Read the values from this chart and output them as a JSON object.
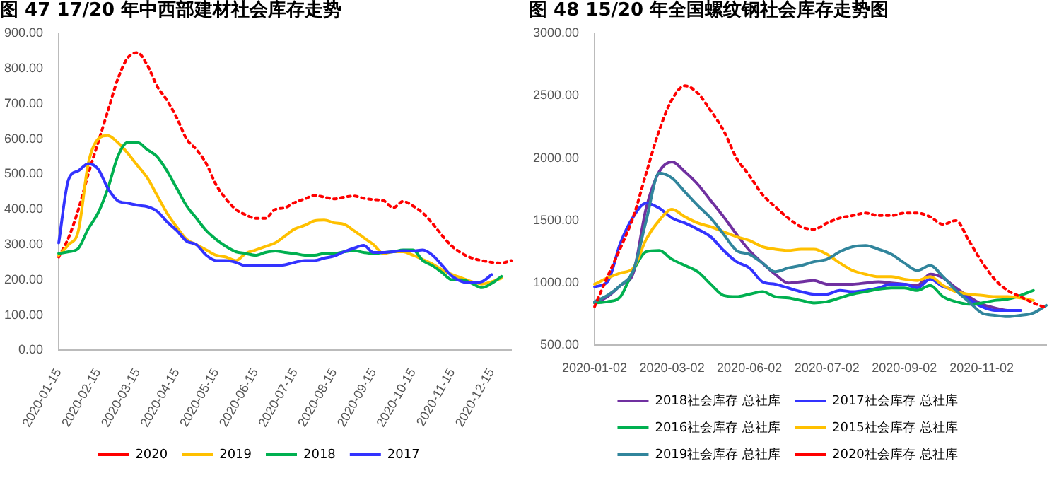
{
  "chart_data": [
    {
      "type": "line",
      "title": "图 47 17/20 年中西部建材社会库存走势",
      "categories": [
        "2020-01-15",
        null,
        null,
        null,
        "2020-02-15",
        null,
        null,
        null,
        "2020-03-15",
        null,
        null,
        null,
        "2020-04-15",
        null,
        null,
        null,
        "2020-05-15",
        null,
        null,
        null,
        "2020-06-15",
        null,
        null,
        null,
        "2020-07-15",
        null,
        null,
        null,
        "2020-08-15",
        null,
        null,
        null,
        "2020-09-15",
        null,
        null,
        null,
        "2020-10-15",
        null,
        null,
        null,
        "2020-11-15",
        null,
        null,
        null,
        "2020-12-15",
        null,
        null
      ],
      "ylim": [
        0,
        900
      ],
      "yticks": [
        {
          "value": 0,
          "label": "0.00"
        },
        {
          "value": 100,
          "label": "100.00"
        },
        {
          "value": 200,
          "label": "200.00"
        },
        {
          "value": 300,
          "label": "300.00"
        },
        {
          "value": 400,
          "label": "400.00"
        },
        {
          "value": 500,
          "label": "500.00"
        },
        {
          "value": 600,
          "label": "600.00"
        },
        {
          "value": 700,
          "label": "700.00"
        },
        {
          "value": 800,
          "label": "800.00"
        },
        {
          "value": 900,
          "label": "900.00"
        }
      ],
      "grid": false,
      "legend": "bottom",
      "marker": "none",
      "series": [
        {
          "name": "2020",
          "color": "#ff0000",
          "line_style": "dotted",
          "values": [
            265,
            320,
            400,
            500,
            590,
            680,
            770,
            830,
            845,
            810,
            750,
            710,
            660,
            600,
            570,
            530,
            470,
            430,
            400,
            385,
            375,
            375,
            400,
            405,
            420,
            430,
            440,
            435,
            430,
            435,
            438,
            432,
            428,
            425,
            405,
            423,
            410,
            390,
            360,
            325,
            295,
            275,
            262,
            255,
            250,
            248,
            255
          ]
        },
        {
          "name": "2019",
          "color": "#ffc000",
          "line_style": "solid",
          "values": [
            270,
            300,
            340,
            530,
            600,
            610,
            590,
            560,
            525,
            490,
            440,
            390,
            350,
            315,
            300,
            285,
            270,
            265,
            255,
            275,
            285,
            295,
            305,
            325,
            345,
            355,
            368,
            370,
            362,
            358,
            340,
            320,
            300,
            275,
            280,
            280,
            270,
            258,
            245,
            228,
            215,
            205,
            195,
            188,
            195,
            205,
            null
          ]
        },
        {
          "name": "2018",
          "color": "#00b050",
          "line_style": "solid",
          "values": [
            275,
            280,
            290,
            345,
            390,
            460,
            550,
            590,
            590,
            570,
            550,
            510,
            460,
            410,
            375,
            340,
            315,
            295,
            280,
            275,
            270,
            278,
            282,
            278,
            275,
            270,
            270,
            275,
            275,
            280,
            283,
            278,
            275,
            278,
            280,
            285,
            285,
            255,
            240,
            220,
            200,
            200,
            190,
            178,
            190,
            210,
            null
          ]
        },
        {
          "name": "2017",
          "color": "#3333ff",
          "line_style": "solid",
          "values": [
            305,
            485,
            510,
            530,
            515,
            460,
            425,
            418,
            412,
            408,
            395,
            365,
            340,
            310,
            300,
            270,
            255,
            255,
            250,
            240,
            240,
            242,
            240,
            243,
            250,
            255,
            255,
            262,
            268,
            280,
            290,
            298,
            278,
            278,
            280,
            283,
            282,
            285,
            270,
            240,
            210,
            195,
            192,
            195,
            215,
            null,
            null
          ]
        }
      ]
    },
    {
      "type": "line",
      "title": "图 48 15/20 年全国螺纹钢社会库存走势图",
      "categories": [
        "2020-01-02",
        null,
        null,
        null,
        null,
        null,
        "2020-03-02",
        null,
        null,
        null,
        null,
        null,
        "2020-06-02",
        null,
        null,
        null,
        null,
        null,
        "2020-07-02",
        null,
        null,
        null,
        null,
        null,
        "2020-09-02",
        null,
        null,
        null,
        null,
        null,
        "2020-11-02",
        null,
        null,
        null,
        null,
        null
      ],
      "ylim": [
        500,
        3000
      ],
      "yticks": [
        {
          "value": 500,
          "label": "500.00"
        },
        {
          "value": 1000,
          "label": "1000.00"
        },
        {
          "value": 1500,
          "label": "1500.00"
        },
        {
          "value": 2000,
          "label": "2000.00"
        },
        {
          "value": 2500,
          "label": "2500.00"
        },
        {
          "value": 3000,
          "label": "3000.00"
        }
      ],
      "grid": false,
      "legend": "bottom",
      "marker": "none",
      "series": [
        {
          "name": "2018社会库存 总社库",
          "color": "#7030a0",
          "line_style": "solid",
          "values": [
            840,
            890,
            980,
            1080,
            1600,
            1890,
            1970,
            1890,
            1790,
            1660,
            1530,
            1390,
            1260,
            1160,
            1070,
            1000,
            1010,
            1020,
            990,
            990,
            990,
            1000,
            1010,
            1000,
            990,
            980,
            1070,
            1040,
            960,
            890,
            830,
            800,
            780,
            780,
            null,
            null
          ]
        },
        {
          "name": "2017社会库存 总社库",
          "color": "#3333ff",
          "line_style": "solid",
          "values": [
            970,
            1010,
            1320,
            1530,
            1640,
            1600,
            1520,
            1480,
            1430,
            1370,
            1260,
            1170,
            1120,
            1010,
            990,
            960,
            930,
            910,
            910,
            940,
            930,
            940,
            960,
            990,
            990,
            960,
            1030,
            970,
            940,
            870,
            810,
            780,
            780,
            780,
            null,
            null
          ]
        },
        {
          "name": "2016社会库存 总社库",
          "color": "#00b050",
          "line_style": "solid",
          "values": [
            840,
            850,
            890,
            1100,
            1250,
            1260,
            1190,
            1140,
            1090,
            990,
            900,
            890,
            910,
            930,
            890,
            880,
            860,
            840,
            850,
            880,
            910,
            930,
            950,
            960,
            960,
            940,
            980,
            890,
            850,
            830,
            840,
            860,
            870,
            900,
            940,
            null
          ]
        },
        {
          "name": "2015社会库存 总社库",
          "color": "#ffc000",
          "line_style": "solid",
          "values": [
            990,
            1040,
            1080,
            1120,
            1350,
            1500,
            1590,
            1530,
            1480,
            1450,
            1410,
            1370,
            1340,
            1290,
            1270,
            1260,
            1270,
            1270,
            1230,
            1160,
            1100,
            1070,
            1050,
            1050,
            1030,
            1020,
            1050,
            980,
            930,
            910,
            900,
            890,
            890,
            880,
            860,
            null
          ]
        },
        {
          "name": "2019社会库存 总社库",
          "color": "#31859c",
          "line_style": "solid",
          "values": [
            850,
            900,
            980,
            1100,
            1500,
            1880,
            1840,
            1730,
            1620,
            1520,
            1390,
            1260,
            1230,
            1160,
            1090,
            1120,
            1140,
            1170,
            1190,
            1250,
            1290,
            1300,
            1270,
            1230,
            1160,
            1100,
            1140,
            1050,
            940,
            850,
            760,
            740,
            730,
            740,
            760,
            820
          ]
        },
        {
          "name": "2020社会库存 总社库",
          "color": "#ff0000",
          "line_style": "dotted",
          "values": [
            810,
            1050,
            1280,
            1530,
            1880,
            2220,
            2470,
            2580,
            2520,
            2380,
            2220,
            2000,
            1860,
            1710,
            1610,
            1520,
            1450,
            1430,
            1480,
            1520,
            1540,
            1560,
            1540,
            1540,
            1560,
            1560,
            1530,
            1470,
            1500,
            1340,
            1170,
            1030,
            940,
            890,
            840,
            800
          ]
        }
      ]
    }
  ]
}
